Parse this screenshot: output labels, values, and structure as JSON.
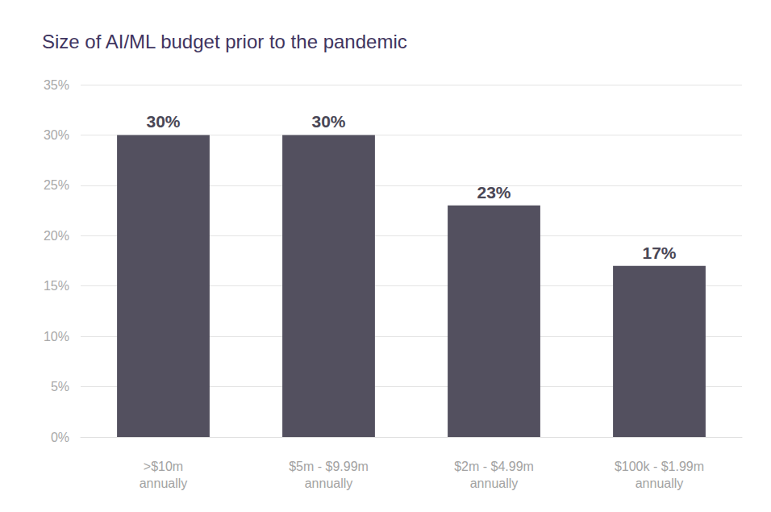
{
  "chart_data": {
    "type": "bar",
    "title": "Size of AI/ML budget prior to the pandemic",
    "categories": [
      ">$10m\nannually",
      "$5m - $9.99m\nannually",
      "$2m - $4.99m\nannually",
      "$100k - $1.99m\nannually"
    ],
    "values": [
      30,
      30,
      23,
      17
    ],
    "value_labels": [
      "30%",
      "30%",
      "23%",
      "17%"
    ],
    "color": "#53505f",
    "ylim": [
      0,
      35
    ],
    "yticks": [
      {
        "value": 0,
        "label": "0%"
      },
      {
        "value": 5,
        "label": "5%"
      },
      {
        "value": 10,
        "label": "10%"
      },
      {
        "value": 15,
        "label": "15%"
      },
      {
        "value": 20,
        "label": "20%"
      },
      {
        "value": 25,
        "label": "25%"
      },
      {
        "value": 30,
        "label": "30%"
      },
      {
        "value": 35,
        "label": "35%"
      }
    ],
    "grid": true,
    "data_labels": true
  }
}
